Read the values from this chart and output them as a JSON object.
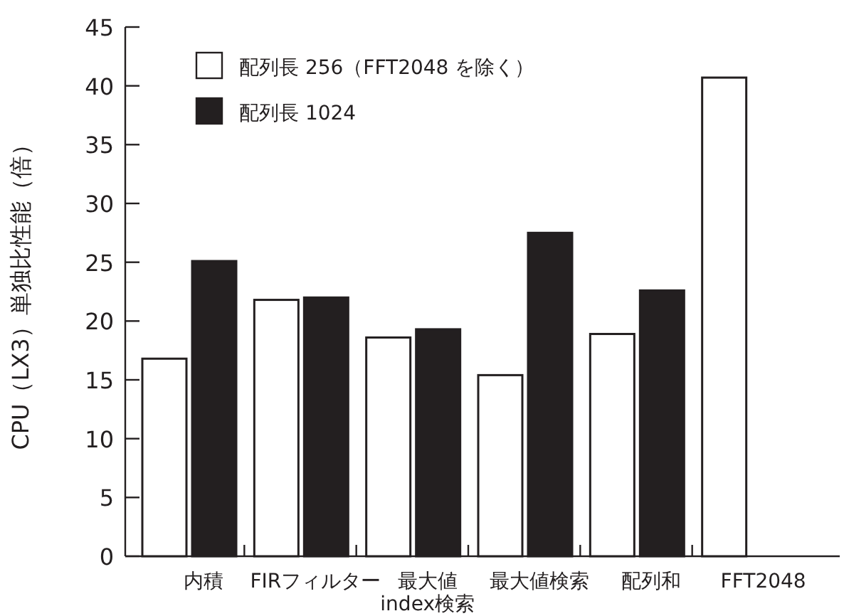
{
  "chart_data": {
    "type": "bar",
    "ylabel": "CPU（LX3）単独比性能（倍）",
    "categories": [
      "内積",
      "FIRフィルター",
      "最大値\nindex検索",
      "最大値検索",
      "配列和",
      "FFT2048"
    ],
    "series": [
      {
        "name": "配列長 256（FFT2048 を除く）",
        "color": "#ffffff",
        "values": [
          16.8,
          21.8,
          18.6,
          15.4,
          18.9,
          40.7
        ]
      },
      {
        "name": "配列長 1024",
        "color": "#231f20",
        "values": [
          25.1,
          22.0,
          19.3,
          27.5,
          22.6,
          null
        ]
      }
    ],
    "ylim": [
      0,
      45
    ],
    "yticks": [
      0,
      5,
      10,
      15,
      20,
      25,
      30,
      35,
      40,
      45
    ],
    "legend": "top left",
    "grid": false
  }
}
